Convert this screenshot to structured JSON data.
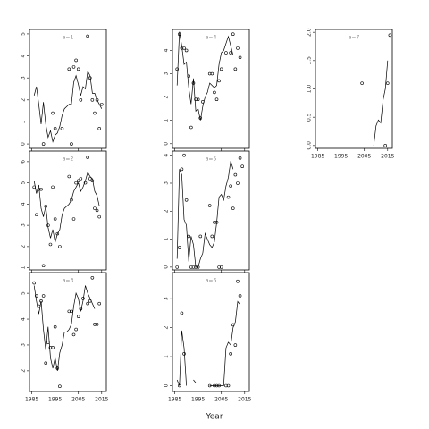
{
  "xlabel": "Year",
  "chart_data": [
    {
      "type": "scatter",
      "title": "a=1",
      "xlim": [
        1984,
        2017
      ],
      "xticks": [
        1985,
        1995,
        2005,
        2015
      ],
      "show_xtick_labels": false,
      "ylim": [
        -0.2,
        5.2
      ],
      "yticks": [
        0,
        1,
        2,
        3,
        4,
        5
      ],
      "x": [
        1986,
        1987,
        1988,
        1989,
        1990,
        1991,
        1992,
        1993,
        1994,
        1995,
        1996,
        1997,
        1998,
        1999,
        2000,
        2001,
        2002,
        2003,
        2004,
        2005,
        2006,
        2007,
        2008,
        2009,
        2010,
        2011,
        2012,
        2013,
        2014,
        2015,
        2016
      ],
      "values": [
        null,
        null,
        null,
        null,
        0,
        null,
        null,
        null,
        1.4,
        0.7,
        null,
        null,
        0.7,
        null,
        null,
        3.4,
        0,
        3.5,
        3.8,
        3.4,
        2,
        null,
        null,
        4.9,
        3,
        2,
        1.4,
        2,
        0.7,
        1.8,
        null
      ],
      "line": [
        2.2,
        2.6,
        1.8,
        0.9,
        1.9,
        0.9,
        0.3,
        0.6,
        0.1,
        0.4,
        0.5,
        0.8,
        1.3,
        1.6,
        1.7,
        1.8,
        1.8,
        2.8,
        3.1,
        2.7,
        2.2,
        2.6,
        2.5,
        3.3,
        3.1,
        2.3,
        2.3,
        2.0,
        1.8,
        1.6,
        null
      ]
    },
    {
      "type": "scatter",
      "title": "a=2",
      "xlim": [
        1984,
        2017
      ],
      "xticks": [
        1985,
        1995,
        2005,
        2015
      ],
      "show_xtick_labels": false,
      "ylim": [
        0.9,
        6.5
      ],
      "yticks": [
        1,
        2,
        3,
        4,
        5,
        6
      ],
      "x": [
        1986,
        1987,
        1988,
        1989,
        1990,
        1991,
        1992,
        1993,
        1994,
        1995,
        1996,
        1997,
        1998,
        1999,
        2000,
        2001,
        2002,
        2003,
        2004,
        2005,
        2006,
        2007,
        2008,
        2009,
        2010,
        2011,
        2012,
        2013,
        2014,
        2015,
        2016
      ],
      "values": [
        4.8,
        3.5,
        4.7,
        4.7,
        1.1,
        3.9,
        3.0,
        2.1,
        4.8,
        3.3,
        2.6,
        2.0,
        null,
        null,
        null,
        5.3,
        4.2,
        3.3,
        5.0,
        5.1,
        5.2,
        null,
        5.0,
        6.2,
        5.2,
        5.1,
        3.8,
        3.7,
        3.4,
        null,
        null
      ],
      "line": [
        5.1,
        4.5,
        4.9,
        3.8,
        3.4,
        3.9,
        2.9,
        2.4,
        2.8,
        2.2,
        2.6,
        2.8,
        3.5,
        3.8,
        3.9,
        4.0,
        4.2,
        4.6,
        4.8,
        5.0,
        4.6,
        4.8,
        5.1,
        5.5,
        5.3,
        5.2,
        4.6,
        4.4,
        3.9,
        null,
        null
      ]
    },
    {
      "type": "scatter",
      "title": "a=3",
      "xlim": [
        1984,
        2017
      ],
      "xticks": [
        1985,
        1995,
        2005,
        2015
      ],
      "show_xtick_labels": true,
      "ylim": [
        1.2,
        5.8
      ],
      "yticks": [
        2,
        3,
        4,
        5
      ],
      "x": [
        1986,
        1987,
        1988,
        1989,
        1990,
        1991,
        1992,
        1993,
        1994,
        1995,
        1996,
        1997,
        1998,
        1999,
        2000,
        2001,
        2002,
        2003,
        2004,
        2005,
        2006,
        2007,
        2008,
        2009,
        2010,
        2011,
        2012,
        2013,
        2014,
        2015,
        2016
      ],
      "values": [
        5.4,
        4.9,
        4.5,
        4.7,
        4.9,
        2.3,
        3.1,
        2.9,
        2.9,
        3.7,
        2.1,
        1.4,
        null,
        null,
        null,
        4.3,
        4.3,
        3.4,
        3.6,
        4.1,
        4.4,
        4.8,
        null,
        4.6,
        4.7,
        5.6,
        3.8,
        3.8,
        4.6,
        null,
        null
      ],
      "line": [
        5.3,
        4.7,
        4.2,
        4.7,
        3.6,
        2.8,
        3.7,
        2.5,
        2.1,
        2.5,
        2.0,
        2.7,
        3.0,
        3.5,
        3.5,
        3.6,
        3.8,
        4.5,
        5.0,
        4.8,
        4.3,
        4.7,
        5.3,
        5.0,
        4.8,
        4.6,
        4.4,
        null,
        null,
        null,
        null
      ]
    },
    {
      "type": "scatter",
      "title": "a=4",
      "xlim": [
        1984,
        2017
      ],
      "xticks": [
        1985,
        1995,
        2005,
        2015
      ],
      "show_xtick_labels": false,
      "ylim": [
        -0.2,
        4.9
      ],
      "yticks": [
        0,
        1,
        2,
        3,
        4
      ],
      "x": [
        1986,
        1987,
        1988,
        1989,
        1990,
        1991,
        1992,
        1993,
        1994,
        1995,
        1996,
        1997,
        1998,
        1999,
        2000,
        2001,
        2002,
        2003,
        2004,
        2005,
        2006,
        2007,
        2008,
        2009,
        2010,
        2011,
        2012,
        2013,
        2014,
        2015,
        2016
      ],
      "values": [
        3.2,
        4.7,
        4.1,
        4.1,
        4.0,
        2.9,
        0.7,
        2.6,
        1.9,
        1.9,
        1.1,
        1.8,
        null,
        null,
        3.0,
        3.0,
        2.2,
        1.9,
        2.7,
        3.2,
        null,
        3.9,
        null,
        3.9,
        4.7,
        3.2,
        4.1,
        3.7,
        null,
        null,
        null
      ],
      "line": [
        2.5,
        4.8,
        4.2,
        3.4,
        3.5,
        2.4,
        1.7,
        2.8,
        1.4,
        1.5,
        1.0,
        1.6,
        2.0,
        2.2,
        2.6,
        2.5,
        2.4,
        2.5,
        3.4,
        3.9,
        4.0,
        4.3,
        4.6,
        4.2,
        3.8,
        null,
        null,
        null,
        null,
        null,
        null
      ]
    },
    {
      "type": "scatter",
      "title": "a=5",
      "xlim": [
        1984,
        2017
      ],
      "xticks": [
        1985,
        1995,
        2005,
        2015
      ],
      "show_xtick_labels": false,
      "ylim": [
        -0.1,
        4.15
      ],
      "yticks": [
        0,
        1,
        2,
        3,
        4
      ],
      "x": [
        1986,
        1987,
        1988,
        1989,
        1990,
        1991,
        1992,
        1993,
        1994,
        1995,
        1996,
        1997,
        1998,
        1999,
        2000,
        2001,
        2002,
        2003,
        2004,
        2005,
        2006,
        2007,
        2008,
        2009,
        2010,
        2011,
        2012,
        2013,
        2014,
        2015,
        2016
      ],
      "values": [
        0,
        0.7,
        3.5,
        4.0,
        2.4,
        1.1,
        0,
        0,
        0,
        0,
        1.1,
        null,
        null,
        null,
        2.2,
        1.1,
        1.6,
        1.6,
        0,
        0,
        null,
        null,
        2.5,
        2.9,
        2.1,
        3.3,
        3.0,
        3.9,
        3.6,
        null,
        null
      ],
      "line": [
        0.3,
        3.5,
        3.3,
        1.7,
        1.5,
        0.2,
        1.1,
        0.8,
        0,
        0,
        0.3,
        0.5,
        1.2,
        1.0,
        0.8,
        0.7,
        0.9,
        1.6,
        2.5,
        2.6,
        2.4,
        2.9,
        3.2,
        3.8,
        3.5,
        null,
        null,
        null,
        null,
        null,
        null
      ]
    },
    {
      "type": "scatter",
      "title": "a=6",
      "xlim": [
        1984,
        2017
      ],
      "xticks": [
        1985,
        1995,
        2005,
        2015
      ],
      "show_xtick_labels": true,
      "ylim": [
        -0.2,
        3.9
      ],
      "yticks": [
        0,
        1,
        2,
        3
      ],
      "x": [
        1986,
        1987,
        1988,
        1989,
        1990,
        1991,
        1992,
        1993,
        1994,
        1995,
        1996,
        1997,
        1998,
        1999,
        2000,
        2001,
        2002,
        2003,
        2004,
        2005,
        2006,
        2007,
        2008,
        2009,
        2010,
        2011,
        2012,
        2013,
        2014,
        2015,
        2016
      ],
      "values": [
        null,
        0,
        2.5,
        1.1,
        null,
        null,
        null,
        null,
        null,
        null,
        null,
        null,
        null,
        null,
        0,
        null,
        0,
        0,
        0,
        null,
        null,
        0,
        0,
        1.1,
        2.1,
        1.4,
        3.6,
        3.1,
        null,
        null,
        null
      ],
      "line": [
        0.2,
        0,
        1.9,
        1.3,
        0,
        null,
        null,
        0.2,
        0.1,
        null,
        null,
        null,
        null,
        null,
        0,
        0,
        0,
        0,
        0,
        0,
        0,
        1.3,
        1.5,
        1.4,
        2.0,
        2.2,
        2.9,
        2.8,
        null,
        null,
        null
      ]
    },
    {
      "type": "scatter",
      "title": "a=7",
      "xlim": [
        1984,
        2017
      ],
      "xticks": [
        1985,
        1995,
        2005,
        2015
      ],
      "show_xtick_labels": true,
      "ylim": [
        -0.05,
        2.05
      ],
      "yticks": [
        {
          "value": 0,
          "label": "0.0"
        },
        {
          "value": 0.5,
          "label": "0.5"
        },
        {
          "value": 1,
          "label": "1.0"
        },
        {
          "value": 1.5,
          "label": "1.5"
        },
        {
          "value": 2,
          "label": "2.0"
        }
      ],
      "x": [
        1986,
        1987,
        1988,
        1989,
        1990,
        1991,
        1992,
        1993,
        1994,
        1995,
        1996,
        1997,
        1998,
        1999,
        2000,
        2001,
        2002,
        2003,
        2004,
        2005,
        2006,
        2007,
        2008,
        2009,
        2010,
        2011,
        2012,
        2013,
        2014,
        2015,
        2016
      ],
      "values": [
        null,
        null,
        null,
        null,
        null,
        null,
        null,
        null,
        null,
        null,
        null,
        null,
        null,
        null,
        null,
        null,
        null,
        null,
        1.1,
        null,
        null,
        null,
        null,
        null,
        null,
        null,
        null,
        null,
        0,
        1.1,
        1.95
      ],
      "line": [
        null,
        null,
        null,
        null,
        null,
        null,
        null,
        null,
        null,
        null,
        null,
        null,
        null,
        null,
        null,
        null,
        null,
        null,
        null,
        null,
        null,
        null,
        null,
        0,
        0.35,
        0.45,
        0.4,
        0.8,
        1.0,
        1.5,
        null
      ]
    }
  ]
}
